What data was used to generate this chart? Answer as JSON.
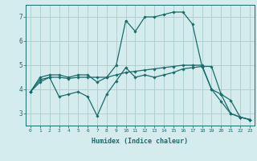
{
  "xlabel": "Humidex (Indice chaleur)",
  "bg_color": "#d4ecee",
  "grid_color": "#a8cccc",
  "line_color": "#1a6b6b",
  "xlim": [
    -0.5,
    23.5
  ],
  "ylim": [
    2.5,
    7.5
  ],
  "yticks": [
    3,
    4,
    5,
    6,
    7
  ],
  "xticks": [
    0,
    1,
    2,
    3,
    4,
    5,
    6,
    7,
    8,
    9,
    10,
    11,
    12,
    13,
    14,
    15,
    16,
    17,
    18,
    19,
    20,
    21,
    22,
    23
  ],
  "series1_x": [
    0,
    1,
    2,
    3,
    4,
    5,
    6,
    7,
    8,
    9,
    10,
    11,
    12,
    13,
    14,
    15,
    16,
    17,
    18,
    19,
    20,
    21,
    22,
    23
  ],
  "series1_y": [
    3.9,
    4.5,
    4.6,
    4.6,
    4.5,
    4.6,
    4.6,
    4.3,
    4.5,
    5.0,
    6.85,
    6.4,
    7.0,
    7.0,
    7.1,
    7.2,
    7.2,
    6.7,
    4.95,
    4.95,
    3.8,
    3.55,
    2.85,
    2.75
  ],
  "series2_x": [
    0,
    1,
    2,
    3,
    4,
    5,
    6,
    7,
    8,
    9,
    10,
    11,
    12,
    13,
    14,
    15,
    16,
    17,
    18,
    19,
    20,
    21,
    22,
    23
  ],
  "series2_y": [
    3.9,
    4.4,
    4.5,
    3.7,
    3.8,
    3.9,
    3.7,
    2.9,
    3.8,
    4.35,
    4.9,
    4.5,
    4.6,
    4.5,
    4.6,
    4.7,
    4.85,
    4.9,
    4.95,
    4.0,
    3.8,
    3.0,
    2.85,
    2.75
  ],
  "series3_x": [
    0,
    1,
    2,
    3,
    4,
    5,
    6,
    7,
    8,
    9,
    10,
    11,
    12,
    13,
    14,
    15,
    16,
    17,
    18,
    19,
    20,
    21,
    22,
    23
  ],
  "series3_y": [
    3.9,
    4.3,
    4.5,
    4.5,
    4.45,
    4.5,
    4.5,
    4.5,
    4.5,
    4.6,
    4.7,
    4.75,
    4.8,
    4.85,
    4.9,
    4.95,
    5.0,
    5.0,
    5.0,
    4.0,
    3.5,
    3.0,
    2.85,
    2.75
  ]
}
